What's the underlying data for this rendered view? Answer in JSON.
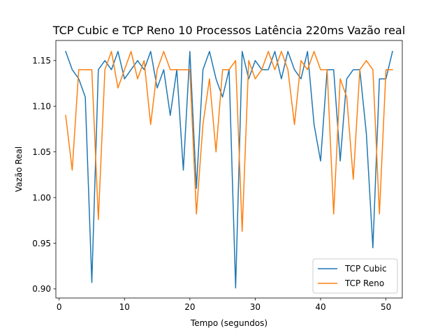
{
  "chart_data": {
    "type": "line",
    "title": "TCP Cubic e TCP Reno 10 Processos Latência 220ms Vazão real",
    "xlabel": "Tempo (segundos)",
    "ylabel": "Vazão Real",
    "xlim": [
      -0.5,
      52.5
    ],
    "ylim": [
      0.89,
      1.172
    ],
    "xticks": [
      0,
      10,
      20,
      30,
      40,
      50
    ],
    "yticks": [
      0.9,
      0.95,
      1.0,
      1.05,
      1.1,
      1.15
    ],
    "ytick_labels": [
      "0.90",
      "0.95",
      "1.00",
      "1.05",
      "1.10",
      "1.15"
    ],
    "grid": false,
    "legend_position": "lower-right",
    "x": [
      1,
      2,
      3,
      4,
      5,
      6,
      7,
      8,
      9,
      10,
      11,
      12,
      13,
      14,
      15,
      16,
      17,
      18,
      19,
      20,
      21,
      22,
      23,
      24,
      25,
      26,
      27,
      28,
      29,
      30,
      31,
      32,
      33,
      34,
      35,
      36,
      37,
      38,
      39,
      40,
      41,
      42,
      43,
      44,
      45,
      46,
      47,
      48,
      49,
      50,
      51
    ],
    "series": [
      {
        "name": "TCP Cubic",
        "color": "#1f77b4",
        "values": [
          1.16,
          1.14,
          1.13,
          1.11,
          0.907,
          1.14,
          1.15,
          1.14,
          1.16,
          1.13,
          1.14,
          1.15,
          1.14,
          1.16,
          1.12,
          1.14,
          1.09,
          1.14,
          1.03,
          1.16,
          1.01,
          1.14,
          1.16,
          1.13,
          1.11,
          1.14,
          0.901,
          1.16,
          1.13,
          1.15,
          1.14,
          1.14,
          1.16,
          1.13,
          1.16,
          1.14,
          1.13,
          1.16,
          1.08,
          1.04,
          1.14,
          1.14,
          1.04,
          1.13,
          1.14,
          1.14,
          1.07,
          0.945,
          1.13,
          1.13,
          1.16
        ]
      },
      {
        "name": "TCP Reno",
        "color": "#ff7f0e",
        "values": [
          1.09,
          1.03,
          1.14,
          1.14,
          1.14,
          0.976,
          1.14,
          1.16,
          1.12,
          1.14,
          1.16,
          1.13,
          1.15,
          1.08,
          1.14,
          1.16,
          1.14,
          1.14,
          1.14,
          1.14,
          0.982,
          1.08,
          1.13,
          1.05,
          1.14,
          1.14,
          1.15,
          0.963,
          1.15,
          1.13,
          1.14,
          1.16,
          1.14,
          1.16,
          1.14,
          1.08,
          1.15,
          1.14,
          1.16,
          1.14,
          1.14,
          0.982,
          1.13,
          1.11,
          1.02,
          1.14,
          1.15,
          1.14,
          0.982,
          1.14,
          1.14
        ]
      }
    ]
  }
}
